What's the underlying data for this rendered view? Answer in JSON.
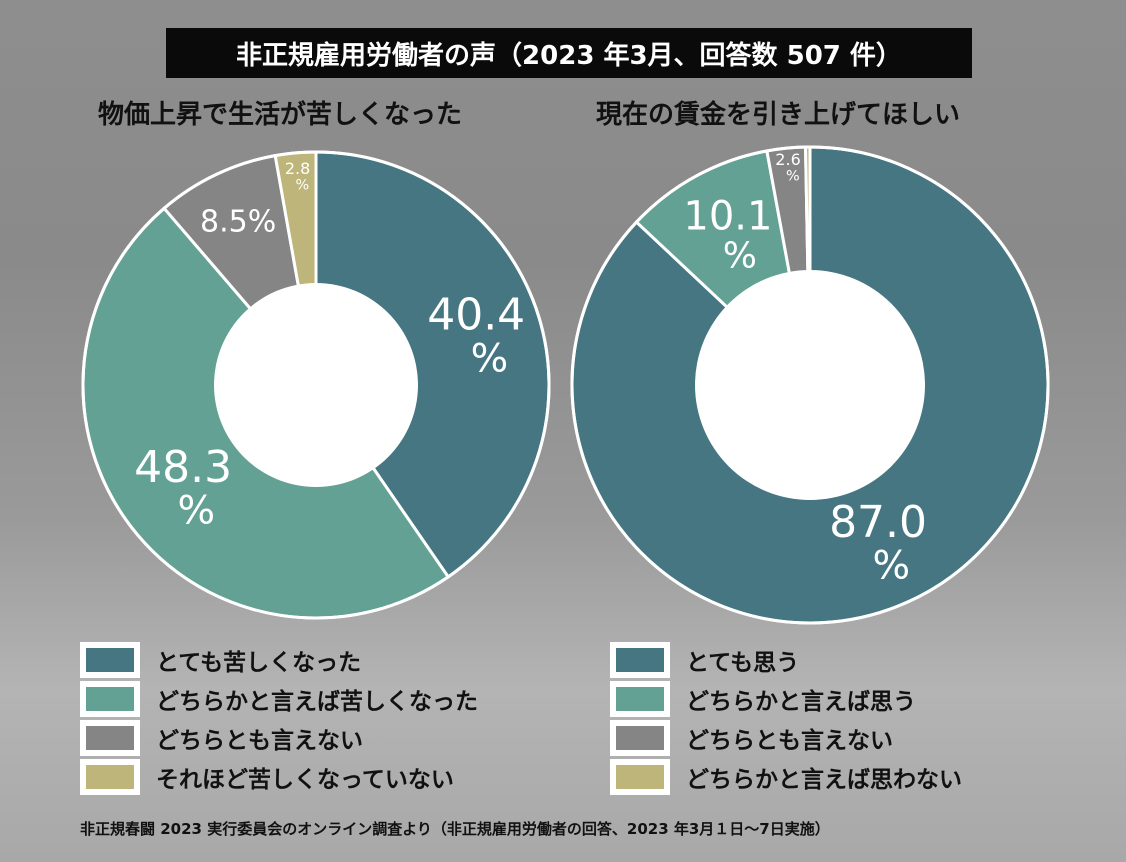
{
  "header": {
    "title": "非正規雇用労働者の声（2023 年3月、回答数 507 件）"
  },
  "source": "非正規春闘 2023 実行委員会のオンライン調査より（非正規雇用労働者の回答、2023 年3月１日〜7日実施）",
  "colors": [
    "#457682",
    "#62a193",
    "#858585",
    "#bdb57a"
  ],
  "chart_data": [
    {
      "type": "pie",
      "title": "物価上昇で生活が苦しくなった",
      "categories": [
        "とても苦しくなった",
        "どちらかと言えば苦しくなった",
        "どちらとも言えない",
        "それほど苦しくなっていない"
      ],
      "values": [
        40.4,
        48.3,
        8.5,
        2.8
      ],
      "labels": [
        [
          "40.4",
          "%"
        ],
        [
          "48.3",
          "%"
        ],
        [
          "8.5%"
        ],
        [
          "2.8",
          "%"
        ]
      ]
    },
    {
      "type": "pie",
      "title": "現在の賃金を引き上げてほしい",
      "categories": [
        "とても思う",
        "どちらかと言えば思う",
        "どちらとも言えない",
        "どちらかと言えば思わない"
      ],
      "values": [
        87.0,
        10.1,
        2.6,
        0.3
      ],
      "labels": [
        [
          "87.0",
          "%"
        ],
        [
          "10.1",
          "%"
        ],
        [
          "2.6",
          "%"
        ],
        []
      ]
    }
  ]
}
